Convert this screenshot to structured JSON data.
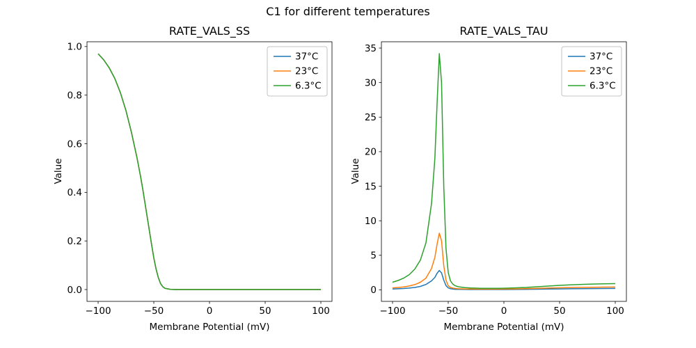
{
  "figure": {
    "title": "C1 for different temperatures",
    "background": "#ffffff",
    "palette": [
      "#1f77b4",
      "#ff7f0e",
      "#2ca02c"
    ]
  },
  "chart_data": [
    {
      "type": "line",
      "title": "RATE_VALS_SS",
      "xlabel": "Membrane Potential (mV)",
      "ylabel": "Value",
      "xlim": [
        -110,
        110
      ],
      "ylim": [
        -0.0486,
        1.0196
      ],
      "xticks": [
        -100,
        -50,
        0,
        50,
        100
      ],
      "xticklabels": [
        "−100",
        "−50",
        "0",
        "50",
        "100"
      ],
      "yticks": [
        0.0,
        0.2,
        0.4,
        0.6,
        0.8,
        1.0
      ],
      "yticklabels": [
        "0.0",
        "0.2",
        "0.4",
        "0.6",
        "0.8",
        "1.0"
      ],
      "legend_position": "upper right",
      "grid": false,
      "x": [
        -100,
        -95,
        -90,
        -85,
        -80,
        -75,
        -70,
        -65,
        -62,
        -60,
        -58,
        -56,
        -54,
        -52,
        -50,
        -48,
        -46,
        -44,
        -42,
        -40,
        -35,
        -30,
        -25,
        -20,
        -15,
        -10,
        -5,
        0,
        10,
        20,
        30,
        40,
        50,
        60,
        70,
        80,
        90,
        100
      ],
      "series": [
        {
          "name": "37°C",
          "color": "#1f77b4",
          "values": [
            0.97,
            0.945,
            0.912,
            0.868,
            0.81,
            0.736,
            0.645,
            0.54,
            0.468,
            0.415,
            0.358,
            0.3,
            0.243,
            0.185,
            0.13,
            0.085,
            0.05,
            0.025,
            0.012,
            0.005,
            0.001,
            0.0,
            0.0,
            0.0,
            0.0,
            0.0,
            0.0,
            0.0,
            0.0,
            0.0,
            0.0,
            0.0,
            0.0,
            0.0,
            0.0,
            0.0,
            0.0,
            0.0
          ]
        },
        {
          "name": "23°C",
          "color": "#ff7f0e",
          "values": [
            0.97,
            0.945,
            0.912,
            0.868,
            0.81,
            0.736,
            0.645,
            0.54,
            0.468,
            0.415,
            0.358,
            0.3,
            0.243,
            0.185,
            0.13,
            0.085,
            0.05,
            0.025,
            0.012,
            0.005,
            0.001,
            0.0,
            0.0,
            0.0,
            0.0,
            0.0,
            0.0,
            0.0,
            0.0,
            0.0,
            0.0,
            0.0,
            0.0,
            0.0,
            0.0,
            0.0,
            0.0,
            0.0
          ]
        },
        {
          "name": "6.3°C",
          "color": "#2ca02c",
          "values": [
            0.97,
            0.945,
            0.912,
            0.868,
            0.81,
            0.736,
            0.645,
            0.54,
            0.468,
            0.415,
            0.358,
            0.3,
            0.243,
            0.185,
            0.13,
            0.085,
            0.05,
            0.025,
            0.012,
            0.005,
            0.001,
            0.0,
            0.0,
            0.0,
            0.0,
            0.0,
            0.0,
            0.0,
            0.0,
            0.0,
            0.0,
            0.0,
            0.0,
            0.0,
            0.0,
            0.0,
            0.0,
            0.0
          ]
        }
      ]
    },
    {
      "type": "line",
      "title": "RATE_VALS_TAU",
      "xlabel": "Membrane Potential (mV)",
      "ylabel": "Value",
      "xlim": [
        -110,
        110
      ],
      "ylim": [
        -1.67,
        35.91
      ],
      "xticks": [
        -100,
        -50,
        0,
        50,
        100
      ],
      "xticklabels": [
        "−100",
        "−50",
        "0",
        "50",
        "100"
      ],
      "yticks": [
        0,
        5,
        10,
        15,
        20,
        25,
        30,
        35
      ],
      "yticklabels": [
        "0",
        "5",
        "10",
        "15",
        "20",
        "25",
        "30",
        "35"
      ],
      "legend_position": "upper right",
      "grid": false,
      "x": [
        -100,
        -95,
        -90,
        -85,
        -80,
        -75,
        -70,
        -65,
        -62,
        -60,
        -58,
        -56,
        -54,
        -52,
        -50,
        -48,
        -46,
        -44,
        -42,
        -40,
        -35,
        -30,
        -25,
        -20,
        -15,
        -10,
        -5,
        0,
        10,
        20,
        30,
        40,
        50,
        60,
        70,
        80,
        90,
        100
      ],
      "series": [
        {
          "name": "37°C",
          "color": "#1f77b4",
          "values": [
            0.12,
            0.15,
            0.19,
            0.25,
            0.34,
            0.5,
            0.78,
            1.3,
            1.8,
            2.4,
            2.8,
            2.45,
            1.4,
            0.62,
            0.28,
            0.16,
            0.11,
            0.085,
            0.07,
            0.06,
            0.05,
            0.045,
            0.042,
            0.04,
            0.04,
            0.04,
            0.042,
            0.045,
            0.055,
            0.07,
            0.09,
            0.11,
            0.13,
            0.15,
            0.17,
            0.185,
            0.195,
            0.2
          ]
        },
        {
          "name": "23°C",
          "color": "#ff7f0e",
          "values": [
            0.28,
            0.34,
            0.43,
            0.56,
            0.76,
            1.1,
            1.7,
            3.1,
            4.7,
            6.6,
            8.2,
            7.1,
            3.5,
            1.4,
            0.6,
            0.35,
            0.25,
            0.2,
            0.17,
            0.15,
            0.12,
            0.11,
            0.1,
            0.1,
            0.1,
            0.1,
            0.105,
            0.11,
            0.13,
            0.16,
            0.2,
            0.25,
            0.29,
            0.33,
            0.36,
            0.38,
            0.4,
            0.41
          ]
        },
        {
          "name": "6.3°C",
          "color": "#2ca02c",
          "values": [
            1.1,
            1.35,
            1.7,
            2.2,
            3.0,
            4.3,
            6.8,
            12.5,
            19.0,
            27.0,
            34.2,
            30.0,
            15.0,
            6.0,
            2.5,
            1.3,
            0.85,
            0.62,
            0.5,
            0.42,
            0.32,
            0.27,
            0.24,
            0.22,
            0.21,
            0.21,
            0.22,
            0.23,
            0.28,
            0.35,
            0.45,
            0.55,
            0.65,
            0.73,
            0.79,
            0.84,
            0.87,
            0.9
          ]
        }
      ]
    }
  ]
}
